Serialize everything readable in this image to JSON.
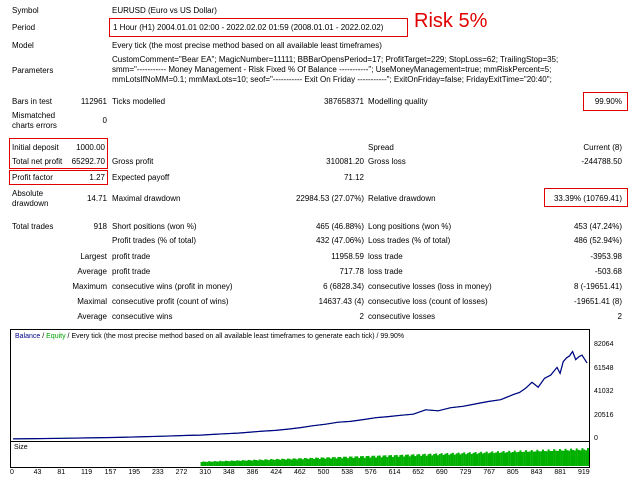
{
  "annotation": {
    "risk_label": "Risk 5%"
  },
  "header": {
    "symbol_label": "Symbol",
    "symbol_value": "EURUSD (Euro vs US Dollar)",
    "period_label": "Period",
    "period_value": "1 Hour (H1) 2004.01.01 02:00 - 2022.02.02 01:59 (2008.01.01 - 2022.02.02)",
    "model_label": "Model",
    "model_value": "Every tick (the most precise method based on all available least timeframes)",
    "parameters_label": "Parameters",
    "parameters_lines": [
      "CustomComment=\"Bear EA\"; MagicNumber=11111; BBBarOpensPeriod=17; ProfitTarget=229; StopLoss=62; TrailingStop=35;",
      "smm=\"----------- Money Management - Risk Fixed % Of Balance -----------\"; UseMoneyManagement=true; mmRiskPercent=5;",
      "mmLotsIfNoMM=0.1; mmMaxLots=10; seof=\"----------- Exit On Friday -----------\"; ExitOnFriday=false; FridayExitTime=\"20:40\";"
    ]
  },
  "stats": {
    "bars_label": "Bars in test",
    "bars_value": "112961",
    "ticks_label": "Ticks modelled",
    "ticks_value": "387658371",
    "quality_label": "Modelling quality",
    "quality_value": "99.90%",
    "mismatch_label1": "Mismatched",
    "mismatch_label2": "charts errors",
    "mismatch_value": "0",
    "deposit_label": "Initial deposit",
    "deposit_value": "1000.00",
    "spread_label": "Spread",
    "spread_value": "Current (8)",
    "netprofit_label": "Total net profit",
    "netprofit_value": "65292.70",
    "grossprofit_label": "Gross profit",
    "grossprofit_value": "310081.20",
    "grossloss_label": "Gross loss",
    "grossloss_value": "-244788.50",
    "pf_label": "Profit factor",
    "pf_value": "1.27",
    "payoff_label": "Expected payoff",
    "payoff_value": "71.12",
    "absdd_label1": "Absolute",
    "absdd_label2": "drawdown",
    "absdd_value": "14.71",
    "maxdd_label": "Maximal drawdown",
    "maxdd_value": "22984.53 (27.07%)",
    "reldd_label": "Relative drawdown",
    "reldd_value": "33.39% (10769.41)",
    "trades_label": "Total trades",
    "trades_value": "918",
    "short_label": "Short positions (won %)",
    "short_value": "465 (46.88%)",
    "long_label": "Long positions (won %)",
    "long_value": "453 (47.24%)",
    "ptrades_label": "Profit trades (% of total)",
    "ptrades_value": "432 (47.06%)",
    "ltrades_label": "Loss trades (% of total)",
    "ltrades_value": "486 (52.94%)",
    "largest_label": "Largest",
    "largest_pt_label": "profit trade",
    "largest_pt_value": "11958.59",
    "largest_lt_label": "loss trade",
    "largest_lt_value": "-3953.98",
    "average_label": "Average",
    "average_pt_label": "profit trade",
    "average_pt_value": "717.78",
    "average_lt_label": "loss trade",
    "average_lt_value": "-503.68",
    "maximum_label": "Maximum",
    "max_cw_label": "consecutive wins (profit in money)",
    "max_cw_value": "6 (6828.34)",
    "max_cl_label": "consecutive losses (loss in money)",
    "max_cl_value": "8 (-19651.41)",
    "maximal_label": "Maximal",
    "maximal_cp_label": "consecutive profit (count of wins)",
    "maximal_cp_value": "14637.43 (4)",
    "maximal_cl_label": "consecutive loss (count of losses)",
    "maximal_cl_value": "-19651.41 (8)",
    "avg2_label": "Average",
    "avg_cw_label": "consecutive wins",
    "avg_cw_value": "2",
    "avg_cl_label": "consecutive losses",
    "avg_cl_value": "2"
  },
  "chart": {
    "legend_balance": "Balance",
    "legend_sep": " / ",
    "legend_equity": "Equity",
    "legend_rest": " / Every tick (the most precise method based on all available least timeframes to generate each tick) / 99.90%",
    "size_label": "Size",
    "colors": {
      "balance": "#00008b",
      "equity": "#00b000",
      "size": "#00b000"
    }
  },
  "chart_data": {
    "type": "line",
    "y_ticks": [
      "82064",
      "61548",
      "41032",
      "20516",
      "0"
    ],
    "x_ticks": [
      "0",
      "43",
      "81",
      "119",
      "157",
      "195",
      "233",
      "272",
      "310",
      "348",
      "386",
      "424",
      "462",
      "500",
      "538",
      "576",
      "614",
      "652",
      "690",
      "729",
      "767",
      "805",
      "843",
      "881",
      "919"
    ],
    "ylim": [
      0,
      82064
    ],
    "series": [
      {
        "name": "Balance",
        "x": [
          0,
          40,
          80,
          120,
          160,
          200,
          240,
          280,
          300,
          320,
          340,
          360,
          380,
          400,
          420,
          440,
          460,
          480,
          500,
          520,
          540,
          560,
          580,
          600,
          620,
          640,
          660,
          680,
          700,
          720,
          740,
          760,
          780,
          800,
          810,
          820,
          830,
          840,
          850,
          860,
          870,
          875,
          880,
          885,
          890,
          895,
          900,
          905,
          910,
          918
        ],
        "values": [
          1000,
          1200,
          1500,
          1800,
          2200,
          2700,
          3300,
          4000,
          4300,
          4900,
          5500,
          6000,
          6900,
          7800,
          8400,
          9500,
          10800,
          12500,
          13800,
          15500,
          16200,
          17800,
          19500,
          20400,
          21600,
          22500,
          26400,
          25500,
          28200,
          29400,
          31500,
          33600,
          35200,
          39600,
          41500,
          45200,
          50400,
          46100,
          53900,
          56700,
          63400,
          58100,
          68400,
          71600,
          73400,
          77300,
          70200,
          72700,
          74100,
          67300
        ]
      },
      {
        "name": "Equity",
        "x": [
          0,
          40,
          80,
          120,
          160,
          200,
          240,
          280,
          300,
          320,
          340,
          360,
          380,
          400,
          420,
          440,
          460,
          480,
          500,
          520,
          540,
          560,
          580,
          600,
          620,
          640,
          660,
          680,
          700,
          720,
          740,
          760,
          780,
          800,
          810,
          820,
          830,
          840,
          850,
          860,
          870,
          875,
          880,
          885,
          890,
          895,
          900,
          905,
          910,
          918
        ],
        "values": [
          1000,
          1200,
          1500,
          1800,
          2200,
          2700,
          3300,
          4000,
          4300,
          4900,
          5500,
          6000,
          6900,
          7800,
          8400,
          9500,
          10800,
          12500,
          13800,
          15500,
          16200,
          17800,
          19500,
          20400,
          21600,
          22500,
          26400,
          25500,
          28200,
          29400,
          31500,
          33600,
          35200,
          39600,
          41500,
          45200,
          50400,
          46100,
          53900,
          56700,
          63400,
          58100,
          68400,
          71600,
          73400,
          77300,
          70200,
          72700,
          74100,
          67300
        ]
      }
    ]
  }
}
